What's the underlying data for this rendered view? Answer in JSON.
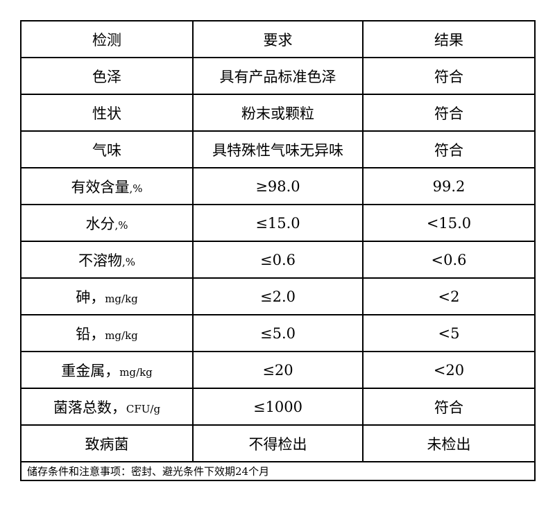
{
  "headers": [
    "检测",
    "要求",
    "结果"
  ],
  "rows": [
    {
      "item": "色泽",
      "unit": "",
      "requirement": "具有产品标准色泽",
      "result": "符合"
    },
    {
      "item": "性状",
      "unit": "",
      "requirement": "粉末或颗粒",
      "result": "符合"
    },
    {
      "item": "气味",
      "unit": "",
      "requirement": "具特殊性气味无异味",
      "result": "符合"
    },
    {
      "item": "有效含量",
      "unit": ",%",
      "requirement": "≥98.0",
      "result": "99.2"
    },
    {
      "item": "水分",
      "unit": ",%",
      "requirement": "≤15.0",
      "result": "<15.0"
    },
    {
      "item": "不溶物",
      "unit": ",%",
      "requirement": "≤0.6",
      "result": "<0.6"
    },
    {
      "item": "砷，",
      "unit": "mg/kg",
      "requirement": "≤2.0",
      "result": "<2"
    },
    {
      "item": "铅，",
      "unit": "mg/kg",
      "requirement": "≤5.0",
      "result": "<5"
    },
    {
      "item": "重金属，",
      "unit": "mg/kg",
      "requirement": "≤20",
      "result": "<20"
    },
    {
      "item": "菌落总数，",
      "unit": "CFU/g",
      "requirement": "≤1000",
      "result": "符合"
    },
    {
      "item": "致病菌",
      "unit": "",
      "requirement": "不得检出",
      "result": "未检出"
    }
  ],
  "footer": "储存条件和注意事项：密封、避光条件下效期24个月"
}
